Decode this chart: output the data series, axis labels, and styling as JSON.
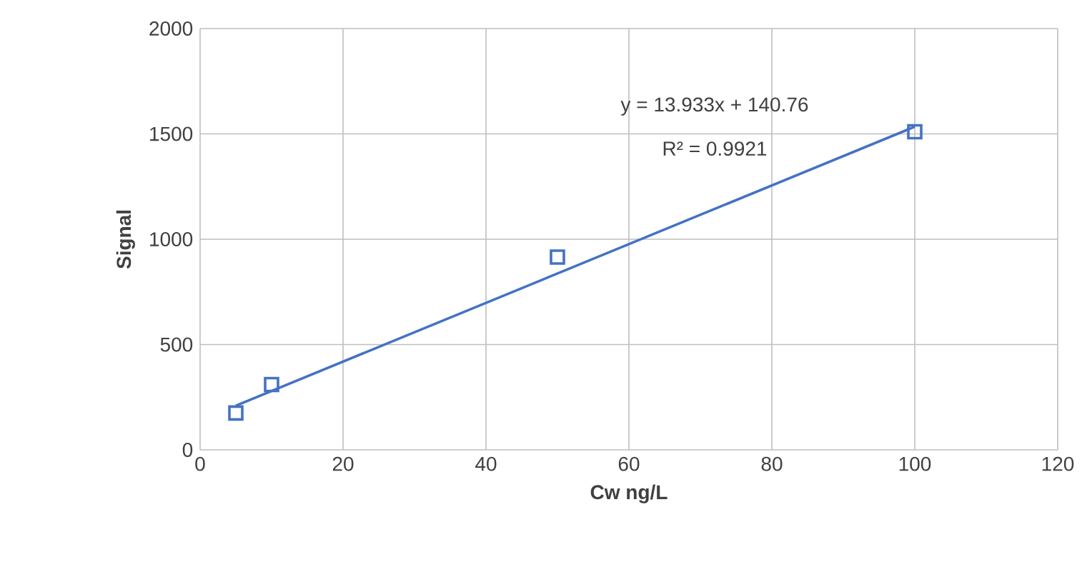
{
  "chart_data": {
    "type": "scatter",
    "xlabel": "Cw ng/L",
    "ylabel": "Signal",
    "series": [
      {
        "color": "#4472c4",
        "marker": "square",
        "x": [
          5,
          10,
          50,
          100
        ],
        "values": [
          175,
          310,
          915,
          1510
        ]
      },
      {
        "type": "line",
        "color": "#4472c4",
        "x": [
          5,
          100
        ],
        "values": [
          210,
          1534
        ]
      }
    ],
    "xlim": [
      0,
      120
    ],
    "xticks": [
      0,
      20,
      40,
      60,
      80,
      100,
      120
    ],
    "ylim": [
      0,
      2000
    ],
    "yticks": [
      0,
      500,
      1000,
      1500,
      2000
    ],
    "grid": true,
    "annotations": [
      "y = 13.933x + 140.76",
      "R² = 0.9921"
    ]
  }
}
